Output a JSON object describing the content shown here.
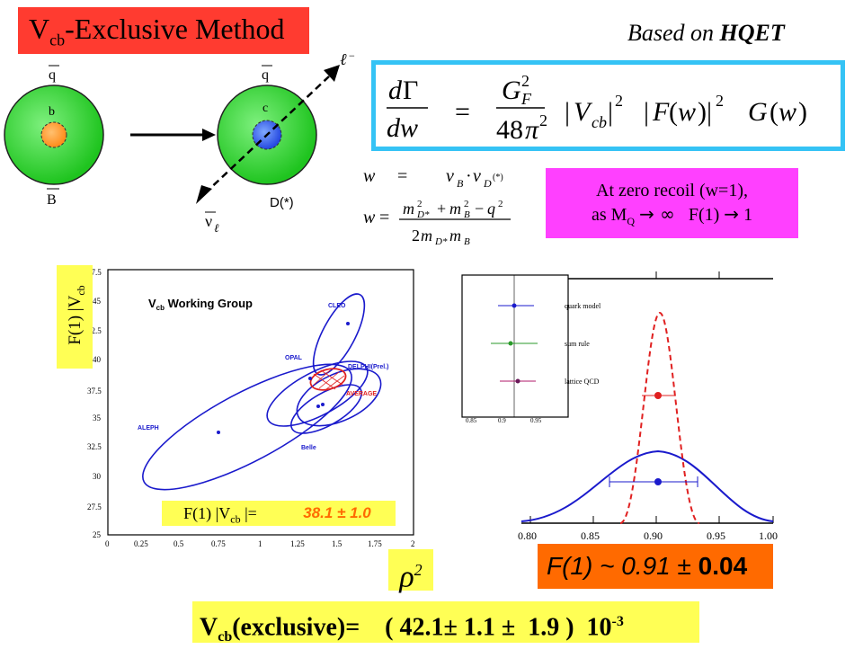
{
  "title": {
    "main": "V",
    "sub": "cb",
    "rest": "-Exclusive Method"
  },
  "hqet": {
    "prefix": "Based on ",
    "bold": "HQET"
  },
  "diagram": {
    "left_top_quark": "q",
    "left_inner": "b",
    "left_bottom": "B",
    "right_top_quark": "q",
    "right_inner": "c",
    "right_bottom": "D(*)",
    "lepton": "ℓ",
    "lepton_charge": "−",
    "neutrino": "ν",
    "neutrino_sub": "ℓ"
  },
  "recoil": {
    "line1": "At zero recoil (w=1),",
    "line2_a": "as M",
    "line2_sub": "Q",
    "line2_b": "F(1)",
    "line2_c": "1"
  },
  "left_plot": {
    "ylabel": "F(1) |V",
    "ylabel_sub": "cb",
    "group": "V",
    "group_sub": "cb",
    "group_rest": " Working Group",
    "yticks": [
      "47.5",
      "45",
      "42.5",
      "40",
      "37.5",
      "35",
      "32.5",
      "30",
      "27.5",
      "25"
    ],
    "xticks": [
      "0",
      "0.25",
      "0.5",
      "0.75",
      "1",
      "1.25",
      "1.5",
      "1.75",
      "2"
    ],
    "labels": [
      "CLEO",
      "OPAL",
      "DELPHI(Prel.)",
      "AVERAGE",
      "ALEPH",
      "Belle"
    ],
    "colors": {
      "ellipse": "#1a1acc",
      "average": "#e02020"
    }
  },
  "f1_vcb": {
    "label_a": "F(1) |V",
    "label_sub": "cb",
    "label_b": " |=",
    "value": "38.1 ± 1.0"
  },
  "rho": "ρ",
  "rho_sup": "2",
  "right_plot": {
    "xticks": [
      "0.80",
      "0.85",
      "0.90",
      "0.95",
      "1.00"
    ],
    "inset_labels": [
      "quark model",
      "sum rule",
      "lattice QCD"
    ],
    "inset_xticks": [
      "0.85",
      "0.9",
      "0.95"
    ]
  },
  "f1_result": {
    "text": "F(1) ~ 0.91 ± ",
    "bold": "0.04"
  },
  "final": {
    "a": "V",
    "sub": "cb",
    "b": "(exclusive)=    ( 42.1± 1.1 ±  1.9 )  10",
    "sup": "-3"
  },
  "colors": {
    "title_bg": "#ff3b30",
    "formula_border": "#35c3f5",
    "recoil_bg": "#ff40ff",
    "yellow": "#ffff55",
    "orange": "#ff6a00"
  }
}
